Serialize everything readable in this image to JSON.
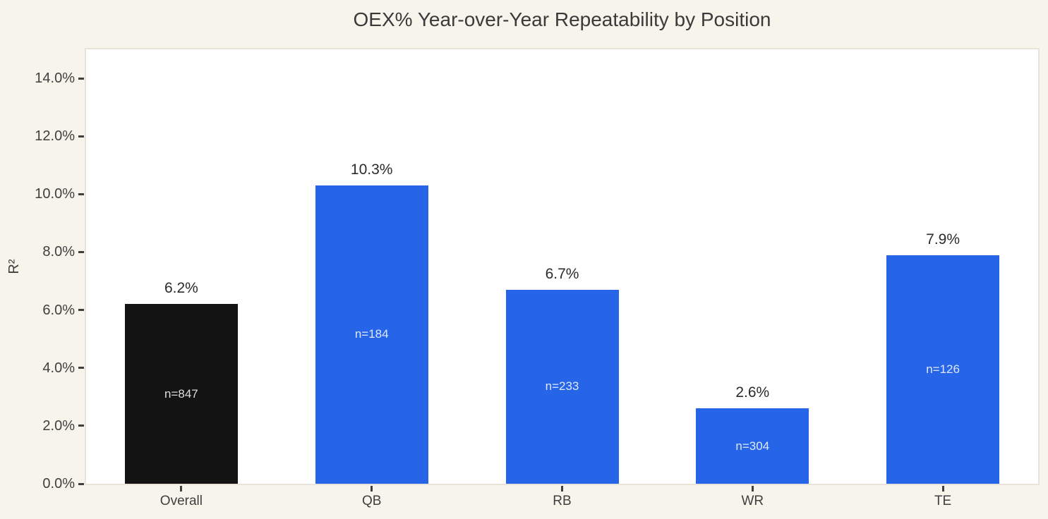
{
  "colors": {
    "page_background": "#F7F4EC",
    "plot_background": "#FFFFFF",
    "plot_border": "#E8E4DB",
    "title_text": "#3A3A3A",
    "axis_text": "#3F3F3F",
    "tick_mark": "#3F3F3F",
    "value_label_text": "#2B2B2B",
    "bar_inner_text": "rgba(255,255,255,0.85)",
    "bar_blue": "#2765E8",
    "bar_black": "#131313"
  },
  "chart_data": {
    "type": "bar",
    "title": "OEX% Year-over-Year Repeatability by Position",
    "xlabel": "",
    "ylabel": "R²",
    "categories": [
      "Overall",
      "QB",
      "RB",
      "WR",
      "TE"
    ],
    "values": [
      6.2,
      10.3,
      6.7,
      2.6,
      7.9
    ],
    "value_labels": [
      "6.2%",
      "10.3%",
      "6.7%",
      "2.6%",
      "7.9%"
    ],
    "sample_sizes": [
      "n=847",
      "n=184",
      "n=233",
      "n=304",
      "n=126"
    ],
    "bar_colors": [
      "#131313",
      "#2765E8",
      "#2765E8",
      "#2765E8",
      "#2765E8"
    ],
    "ylim": [
      0,
      15
    ],
    "ytick_values": [
      0,
      2,
      4,
      6,
      8,
      10,
      12,
      14
    ],
    "ytick_labels": [
      "0.0%",
      "2.0%",
      "4.0%",
      "6.0%",
      "8.0%",
      "10.0%",
      "12.0%",
      "14.0%"
    ],
    "grid": false,
    "legend": "none"
  }
}
